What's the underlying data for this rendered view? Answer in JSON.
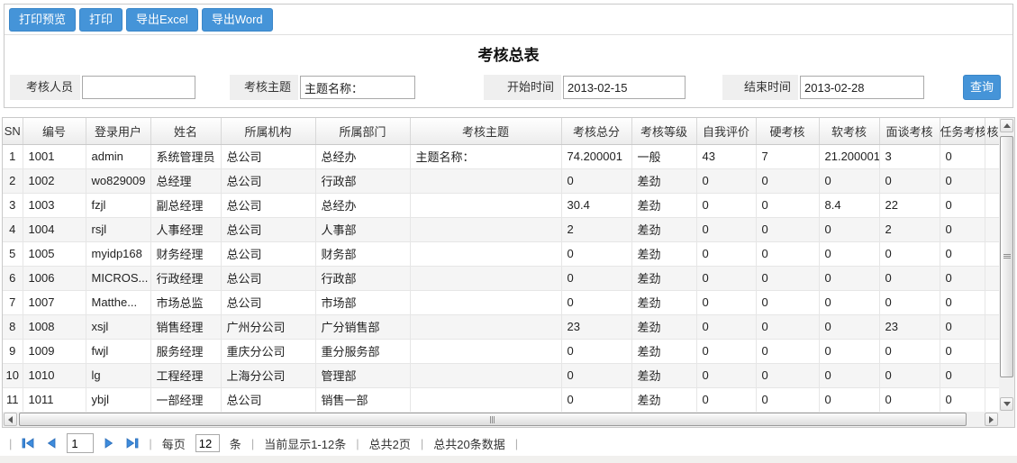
{
  "title": "考核总表",
  "toolbar": {
    "buttons": [
      {
        "label": "打印预览"
      },
      {
        "label": "打印"
      },
      {
        "label": "导出Excel"
      },
      {
        "label": "导出Word"
      }
    ]
  },
  "filters": {
    "assessor_label": "考核人员",
    "assessor_value": "",
    "topic_label": "考核主题",
    "topic_value": "主题名称：",
    "start_label": "开始时间",
    "start_value": "2013-02-15",
    "end_label": "结束时间",
    "end_value": "2013-02-28",
    "search_label": "查询"
  },
  "table": {
    "columns": [
      "SN",
      "编号",
      "登录用户",
      "姓名",
      "所属机构",
      "所属部门",
      "考核主题",
      "考核总分",
      "考核等级",
      "自我评价",
      "硬考核",
      "软考核",
      "面谈考核",
      "任务考核"
    ],
    "partial_column_header": "核",
    "rows": [
      [
        "1",
        "1001",
        "admin",
        "系统管理员",
        "总公司",
        "总经办",
        "主题名称：",
        "74.200001",
        "一般",
        "43",
        "7",
        "21.200001",
        "3",
        "0"
      ],
      [
        "2",
        "1002",
        "wo829009",
        "总经理",
        "总公司",
        "行政部",
        "",
        "0",
        "差劲",
        "0",
        "0",
        "0",
        "0",
        "0"
      ],
      [
        "3",
        "1003",
        "fzjl",
        "副总经理",
        "总公司",
        "总经办",
        "",
        "30.4",
        "差劲",
        "0",
        "0",
        "8.4",
        "22",
        "0"
      ],
      [
        "4",
        "1004",
        "rsjl",
        "人事经理",
        "总公司",
        "人事部",
        "",
        "2",
        "差劲",
        "0",
        "0",
        "0",
        "2",
        "0"
      ],
      [
        "5",
        "1005",
        "myidp168",
        "财务经理",
        "总公司",
        "财务部",
        "",
        "0",
        "差劲",
        "0",
        "0",
        "0",
        "0",
        "0"
      ],
      [
        "6",
        "1006",
        "MICROS...",
        "行政经理",
        "总公司",
        "行政部",
        "",
        "0",
        "差劲",
        "0",
        "0",
        "0",
        "0",
        "0"
      ],
      [
        "7",
        "1007",
        "Matthe...",
        "市场总监",
        "总公司",
        "市场部",
        "",
        "0",
        "差劲",
        "0",
        "0",
        "0",
        "0",
        "0"
      ],
      [
        "8",
        "1008",
        "xsjl",
        "销售经理",
        "广州分公司",
        "广分销售部",
        "",
        "23",
        "差劲",
        "0",
        "0",
        "0",
        "23",
        "0"
      ],
      [
        "9",
        "1009",
        "fwjl",
        "服务经理",
        "重庆分公司",
        "重分服务部",
        "",
        "0",
        "差劲",
        "0",
        "0",
        "0",
        "0",
        "0"
      ],
      [
        "10",
        "1010",
        "lg",
        "工程经理",
        "上海分公司",
        "管理部",
        "",
        "0",
        "差劲",
        "0",
        "0",
        "0",
        "0",
        "0"
      ],
      [
        "11",
        "1011",
        "ybjl",
        "一部经理",
        "总公司",
        "销售一部",
        "",
        "0",
        "差劲",
        "0",
        "0",
        "0",
        "0",
        "0"
      ]
    ]
  },
  "pagination": {
    "separator": "|",
    "page_value": "1",
    "per_page_prefix": "每页",
    "per_page_value": "12",
    "per_page_suffix": "条",
    "showing": "当前显示1-12条",
    "total_pages": "总共2页",
    "total_records": "总共20条数据"
  },
  "colors": {
    "accent_blue": "#4594d8",
    "pager_icon_blue": "#3e8cdc",
    "header_gradient_bottom": "#ececec",
    "row_stripe": "#f5f5f5"
  }
}
